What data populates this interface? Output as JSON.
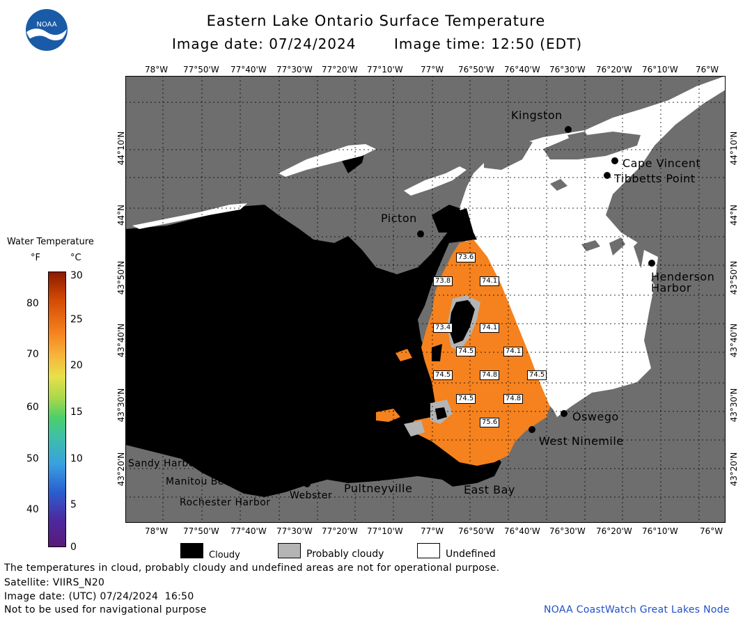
{
  "header": {
    "title": "Eastern Lake Ontario Surface Temperature",
    "image_date_label": "Image date: 07/24/2024",
    "image_time_label": "Image time: 12:50 (EDT)"
  },
  "map": {
    "longitude_labels": [
      "78°W",
      "77°50'W",
      "77°40'W",
      "77°30'W",
      "77°20'W",
      "77°10'W",
      "77°W",
      "76°50'W",
      "76°40'W",
      "76°30'W",
      "76°20'W",
      "76°10'W",
      "76°W"
    ],
    "top_last_longitude_label": "76°W",
    "latitude_labels": [
      "44°10'N",
      "44°N",
      "43°50'N",
      "43°40'N",
      "43°30'N",
      "43°20'N"
    ],
    "places": {
      "kingston": "Kingston",
      "cape_vincent": "Cape Vincent",
      "tibbetts_point": "Tibbetts Point",
      "picton": "Picton",
      "henderson_harbor_line1": "Henderson",
      "henderson_harbor_line2": "Harbor",
      "oswego": "Oswego",
      "west_ninemile": "West Ninemile",
      "sandy_harbour": "Sandy Harbour",
      "manitou_beach": "Manitou Beach",
      "rochester_harbor": "Rochester Harbor",
      "webster": "Webster",
      "pultneyville": "Pultneyville",
      "east_bay": "East Bay"
    },
    "temperature_labels": [
      "73.6",
      "73.8",
      "74.1",
      "73.4",
      "74.1",
      "74.5",
      "74.1",
      "74.5",
      "74.8",
      "74.5",
      "74.5",
      "74.8",
      "75.6"
    ],
    "colors": {
      "land": "#6e6e6e",
      "cloudy": "#000000",
      "probably_cloudy": "#b4b4b4",
      "undefined": "#ffffff",
      "water_temp": "#f5821e"
    }
  },
  "colorbar": {
    "title": "Water Temperature",
    "unit_f": "°F",
    "unit_c": "°C",
    "f_ticks": [
      "80",
      "70",
      "60",
      "50",
      "40"
    ],
    "c_ticks": [
      "30",
      "25",
      "20",
      "15",
      "10",
      "5",
      "0"
    ]
  },
  "legend": {
    "cloudy": "Cloudy",
    "probably_cloudy": "Probably cloudy",
    "undefined": "Undefined"
  },
  "footer": {
    "disclaimer": "The temperatures in cloud, probably cloudy and undefined areas are not for operational purpose.",
    "satellite": "Satellite: VIIRS_N20",
    "utc_date": "Image date: (UTC) 07/24/2024  16:50",
    "nav_warning": "Not to be used for navigational purpose",
    "credit": "NOAA CoastWatch Great Lakes Node"
  }
}
